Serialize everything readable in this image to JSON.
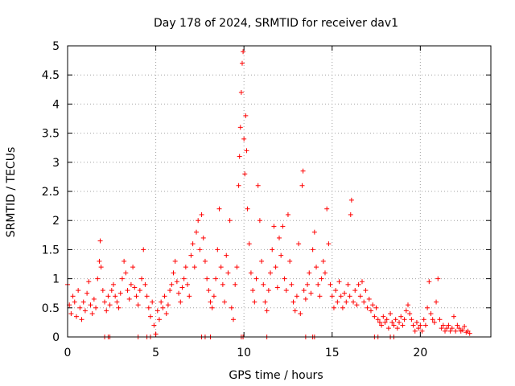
{
  "chart_data": {
    "type": "scatter",
    "title": "Day 178 of 2024, SRMTID for receiver dav1",
    "xlabel": "GPS time / hours",
    "ylabel": "SRMTID / TECUs",
    "xlim": [
      0,
      24
    ],
    "ylim": [
      0,
      5
    ],
    "xticks": [
      "0",
      "5",
      "10",
      "15",
      "20"
    ],
    "yticks": [
      "0",
      "0.5",
      "1",
      "1.5",
      "2",
      "2.5",
      "3",
      "3.5",
      "4",
      "4.5",
      "5"
    ],
    "grid": true,
    "marker": "plus",
    "color": "#ff0000",
    "series": [
      {
        "name": "SRMTID",
        "points": [
          [
            0.0,
            0.9
          ],
          [
            0.1,
            0.55
          ],
          [
            0.2,
            0.4
          ],
          [
            0.3,
            0.7
          ],
          [
            0.4,
            0.6
          ],
          [
            0.5,
            0.35
          ],
          [
            0.6,
            0.8
          ],
          [
            0.7,
            0.5
          ],
          [
            0.8,
            0.3
          ],
          [
            0.9,
            0.6
          ],
          [
            1.0,
            0.45
          ],
          [
            1.1,
            0.75
          ],
          [
            1.2,
            0.95
          ],
          [
            1.3,
            0.55
          ],
          [
            1.4,
            0.4
          ],
          [
            1.5,
            0.65
          ],
          [
            1.6,
            0.5
          ],
          [
            1.7,
            1.0
          ],
          [
            1.8,
            1.3
          ],
          [
            1.85,
            1.65
          ],
          [
            1.9,
            1.2
          ],
          [
            2.0,
            0.8
          ],
          [
            2.1,
            0.6
          ],
          [
            2.2,
            0.45
          ],
          [
            2.3,
            0.7
          ],
          [
            2.4,
            0.55
          ],
          [
            2.5,
            0.8
          ],
          [
            2.6,
            0.9
          ],
          [
            2.7,
            0.7
          ],
          [
            2.8,
            0.6
          ],
          [
            2.9,
            0.5
          ],
          [
            3.0,
            0.75
          ],
          [
            3.1,
            1.0
          ],
          [
            3.2,
            1.3
          ],
          [
            3.3,
            1.1
          ],
          [
            3.4,
            0.8
          ],
          [
            3.5,
            0.65
          ],
          [
            3.6,
            0.9
          ],
          [
            3.7,
            1.2
          ],
          [
            3.8,
            0.85
          ],
          [
            3.9,
            0.7
          ],
          [
            4.0,
            0.55
          ],
          [
            4.1,
            0.8
          ],
          [
            4.2,
            1.0
          ],
          [
            4.3,
            1.5
          ],
          [
            4.4,
            0.9
          ],
          [
            4.5,
            0.7
          ],
          [
            4.6,
            0.5
          ],
          [
            4.7,
            0.35
          ],
          [
            4.8,
            0.6
          ],
          [
            4.9,
            0.2
          ],
          [
            5.0,
            0.05
          ],
          [
            5.1,
            0.45
          ],
          [
            5.2,
            0.3
          ],
          [
            5.3,
            0.6
          ],
          [
            5.4,
            0.5
          ],
          [
            5.5,
            0.7
          ],
          [
            5.6,
            0.4
          ],
          [
            5.7,
            0.55
          ],
          [
            5.8,
            0.8
          ],
          [
            5.9,
            0.9
          ],
          [
            6.0,
            1.1
          ],
          [
            6.1,
            1.3
          ],
          [
            6.2,
            0.95
          ],
          [
            6.3,
            0.75
          ],
          [
            6.4,
            0.6
          ],
          [
            6.5,
            0.85
          ],
          [
            6.6,
            1.0
          ],
          [
            6.7,
            1.2
          ],
          [
            6.8,
            0.9
          ],
          [
            6.9,
            0.7
          ],
          [
            7.0,
            1.4
          ],
          [
            7.1,
            1.6
          ],
          [
            7.2,
            1.2
          ],
          [
            7.3,
            1.8
          ],
          [
            7.4,
            2.0
          ],
          [
            7.5,
            1.5
          ],
          [
            7.6,
            2.1
          ],
          [
            7.7,
            1.7
          ],
          [
            7.8,
            1.3
          ],
          [
            7.9,
            1.0
          ],
          [
            8.0,
            0.8
          ],
          [
            8.1,
            0.6
          ],
          [
            8.2,
            0.5
          ],
          [
            8.3,
            0.7
          ],
          [
            8.4,
            1.0
          ],
          [
            8.5,
            1.5
          ],
          [
            8.6,
            2.2
          ],
          [
            8.7,
            1.2
          ],
          [
            8.8,
            0.9
          ],
          [
            8.9,
            0.6
          ],
          [
            9.0,
            1.4
          ],
          [
            9.1,
            1.1
          ],
          [
            9.2,
            2.0
          ],
          [
            9.3,
            0.5
          ],
          [
            9.4,
            0.3
          ],
          [
            9.5,
            0.9
          ],
          [
            9.6,
            1.2
          ],
          [
            9.7,
            2.6
          ],
          [
            9.75,
            3.1
          ],
          [
            9.8,
            3.6
          ],
          [
            9.85,
            4.2
          ],
          [
            9.9,
            4.7
          ],
          [
            9.95,
            4.9
          ],
          [
            10.0,
            3.4
          ],
          [
            10.05,
            2.8
          ],
          [
            10.1,
            3.8
          ],
          [
            10.15,
            3.2
          ],
          [
            10.2,
            2.2
          ],
          [
            10.3,
            1.6
          ],
          [
            10.4,
            1.1
          ],
          [
            10.5,
            0.8
          ],
          [
            10.6,
            0.6
          ],
          [
            10.7,
            1.0
          ],
          [
            10.8,
            2.6
          ],
          [
            10.9,
            2.0
          ],
          [
            11.0,
            1.3
          ],
          [
            11.1,
            0.9
          ],
          [
            11.2,
            0.6
          ],
          [
            11.3,
            0.45
          ],
          [
            11.4,
            0.8
          ],
          [
            11.5,
            1.1
          ],
          [
            11.6,
            1.5
          ],
          [
            11.7,
            1.9
          ],
          [
            11.8,
            1.2
          ],
          [
            11.9,
            0.85
          ],
          [
            12.0,
            1.7
          ],
          [
            12.1,
            1.4
          ],
          [
            12.2,
            1.9
          ],
          [
            12.3,
            1.0
          ],
          [
            12.4,
            0.8
          ],
          [
            12.5,
            2.1
          ],
          [
            12.6,
            1.3
          ],
          [
            12.7,
            0.9
          ],
          [
            12.8,
            0.6
          ],
          [
            12.9,
            0.45
          ],
          [
            13.0,
            0.7
          ],
          [
            13.1,
            1.6
          ],
          [
            13.2,
            0.4
          ],
          [
            13.3,
            2.6
          ],
          [
            13.35,
            2.85
          ],
          [
            13.4,
            0.8
          ],
          [
            13.5,
            0.65
          ],
          [
            13.6,
            0.9
          ],
          [
            13.7,
            1.1
          ],
          [
            13.8,
            0.75
          ],
          [
            13.9,
            1.5
          ],
          [
            14.0,
            1.8
          ],
          [
            14.1,
            1.2
          ],
          [
            14.2,
            0.9
          ],
          [
            14.3,
            0.7
          ],
          [
            14.4,
            1.0
          ],
          [
            14.5,
            1.3
          ],
          [
            14.6,
            1.1
          ],
          [
            14.7,
            2.2
          ],
          [
            14.8,
            1.6
          ],
          [
            14.9,
            0.9
          ],
          [
            15.0,
            0.7
          ],
          [
            15.1,
            0.5
          ],
          [
            15.2,
            0.8
          ],
          [
            15.3,
            0.6
          ],
          [
            15.4,
            0.95
          ],
          [
            15.5,
            0.7
          ],
          [
            15.6,
            0.5
          ],
          [
            15.7,
            0.75
          ],
          [
            15.8,
            0.6
          ],
          [
            15.9,
            0.9
          ],
          [
            16.0,
            0.7
          ],
          [
            16.05,
            2.1
          ],
          [
            16.1,
            2.35
          ],
          [
            16.2,
            0.6
          ],
          [
            16.3,
            0.8
          ],
          [
            16.4,
            0.55
          ],
          [
            16.5,
            0.9
          ],
          [
            16.6,
            0.7
          ],
          [
            16.7,
            0.95
          ],
          [
            16.8,
            0.6
          ],
          [
            16.9,
            0.8
          ],
          [
            17.0,
            0.5
          ],
          [
            17.1,
            0.65
          ],
          [
            17.2,
            0.45
          ],
          [
            17.3,
            0.55
          ],
          [
            17.4,
            0.35
          ],
          [
            17.5,
            0.5
          ],
          [
            17.6,
            0.3
          ],
          [
            17.7,
            0.25
          ],
          [
            17.8,
            0.2
          ],
          [
            17.9,
            0.35
          ],
          [
            18.0,
            0.25
          ],
          [
            18.1,
            0.3
          ],
          [
            18.2,
            0.15
          ],
          [
            18.3,
            0.4
          ],
          [
            18.4,
            0.25
          ],
          [
            18.5,
            0.2
          ],
          [
            18.6,
            0.3
          ],
          [
            18.7,
            0.15
          ],
          [
            18.8,
            0.25
          ],
          [
            18.9,
            0.35
          ],
          [
            19.0,
            0.2
          ],
          [
            19.1,
            0.3
          ],
          [
            19.2,
            0.45
          ],
          [
            19.3,
            0.55
          ],
          [
            19.4,
            0.4
          ],
          [
            19.5,
            0.3
          ],
          [
            19.6,
            0.2
          ],
          [
            19.7,
            0.1
          ],
          [
            19.8,
            0.25
          ],
          [
            19.9,
            0.15
          ],
          [
            20.0,
            0.2
          ],
          [
            20.1,
            0.1
          ],
          [
            20.2,
            0.3
          ],
          [
            20.3,
            0.2
          ],
          [
            20.4,
            0.5
          ],
          [
            20.5,
            0.95
          ],
          [
            20.6,
            0.4
          ],
          [
            20.7,
            0.3
          ],
          [
            20.8,
            0.25
          ],
          [
            20.9,
            0.6
          ],
          [
            21.0,
            1.0
          ],
          [
            21.1,
            0.3
          ],
          [
            21.2,
            0.15
          ],
          [
            21.3,
            0.2
          ],
          [
            21.4,
            0.1
          ],
          [
            21.5,
            0.15
          ],
          [
            21.6,
            0.2
          ],
          [
            21.7,
            0.1
          ],
          [
            21.8,
            0.15
          ],
          [
            21.9,
            0.35
          ],
          [
            22.0,
            0.1
          ],
          [
            22.1,
            0.2
          ],
          [
            22.2,
            0.15
          ],
          [
            22.3,
            0.1
          ],
          [
            22.4,
            0.12
          ],
          [
            22.5,
            0.18
          ],
          [
            22.6,
            0.08
          ],
          [
            22.7,
            0.1
          ],
          [
            22.8,
            0.06
          ],
          [
            2.1,
            0.0
          ],
          [
            2.3,
            0.0
          ],
          [
            2.4,
            0.0
          ],
          [
            4.0,
            0.0
          ],
          [
            4.5,
            0.0
          ],
          [
            4.7,
            0.0
          ],
          [
            7.6,
            0.0
          ],
          [
            7.8,
            0.0
          ],
          [
            8.1,
            0.0
          ],
          [
            9.85,
            0.0
          ],
          [
            9.95,
            0.0
          ],
          [
            11.3,
            0.0
          ],
          [
            13.5,
            0.0
          ],
          [
            13.9,
            0.0
          ],
          [
            14.0,
            0.0
          ],
          [
            17.4,
            0.0
          ],
          [
            17.6,
            0.0
          ],
          [
            18.3,
            0.0
          ],
          [
            18.5,
            0.0
          ]
        ]
      }
    ]
  }
}
